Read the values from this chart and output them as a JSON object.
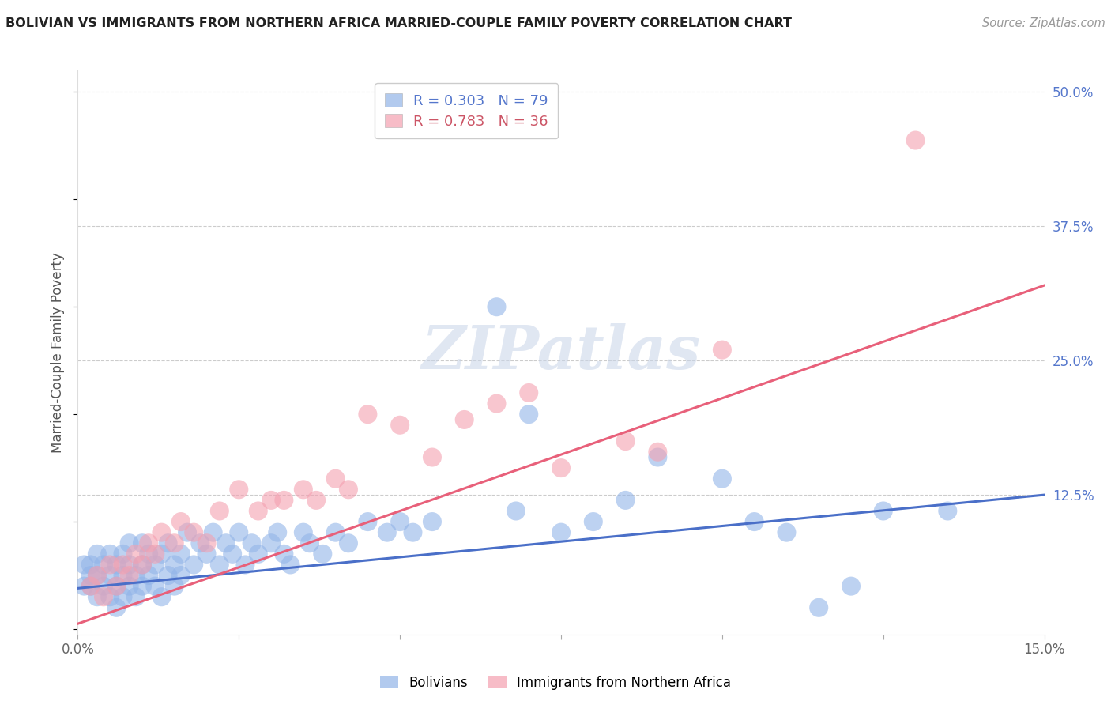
{
  "title": "BOLIVIAN VS IMMIGRANTS FROM NORTHERN AFRICA MARRIED-COUPLE FAMILY POVERTY CORRELATION CHART",
  "source": "Source: ZipAtlas.com",
  "ylabel": "Married-Couple Family Poverty",
  "ytick_labels": [
    "12.5%",
    "25.0%",
    "37.5%",
    "50.0%"
  ],
  "ytick_values": [
    0.125,
    0.25,
    0.375,
    0.5
  ],
  "xtick_positions": [
    0.0,
    0.025,
    0.05,
    0.075,
    0.1,
    0.125,
    0.15
  ],
  "xtick_labels": [
    "0.0%",
    "",
    "",
    "",
    "",
    "",
    "15.0%"
  ],
  "xlim": [
    0.0,
    0.15
  ],
  "ylim": [
    -0.005,
    0.52
  ],
  "blue_R": 0.303,
  "blue_N": 79,
  "pink_R": 0.783,
  "pink_N": 36,
  "blue_color": "#92b4e8",
  "pink_color": "#f4a0b0",
  "blue_line_color": "#4a6fc8",
  "pink_line_color": "#e8607a",
  "legend_label_blue": "Bolivians",
  "legend_label_pink": "Immigrants from Northern Africa",
  "watermark": "ZIPatlas",
  "blue_line_x": [
    0.0,
    0.15
  ],
  "blue_line_y": [
    0.038,
    0.125
  ],
  "pink_line_x": [
    0.0,
    0.15
  ],
  "pink_line_y": [
    0.005,
    0.32
  ],
  "blue_scatter_x": [
    0.001,
    0.001,
    0.002,
    0.002,
    0.002,
    0.003,
    0.003,
    0.003,
    0.004,
    0.004,
    0.005,
    0.005,
    0.005,
    0.006,
    0.006,
    0.006,
    0.007,
    0.007,
    0.007,
    0.008,
    0.008,
    0.008,
    0.009,
    0.009,
    0.01,
    0.01,
    0.01,
    0.011,
    0.011,
    0.012,
    0.012,
    0.013,
    0.013,
    0.014,
    0.014,
    0.015,
    0.015,
    0.016,
    0.016,
    0.017,
    0.018,
    0.019,
    0.02,
    0.021,
    0.022,
    0.023,
    0.024,
    0.025,
    0.026,
    0.027,
    0.028,
    0.03,
    0.031,
    0.032,
    0.033,
    0.035,
    0.036,
    0.038,
    0.04,
    0.042,
    0.045,
    0.048,
    0.05,
    0.052,
    0.055,
    0.065,
    0.068,
    0.07,
    0.075,
    0.08,
    0.085,
    0.09,
    0.1,
    0.105,
    0.11,
    0.115,
    0.12,
    0.125,
    0.135
  ],
  "blue_scatter_y": [
    0.04,
    0.06,
    0.05,
    0.04,
    0.06,
    0.03,
    0.05,
    0.07,
    0.04,
    0.06,
    0.03,
    0.05,
    0.07,
    0.02,
    0.04,
    0.06,
    0.03,
    0.05,
    0.07,
    0.04,
    0.06,
    0.08,
    0.03,
    0.05,
    0.04,
    0.06,
    0.08,
    0.05,
    0.07,
    0.04,
    0.06,
    0.03,
    0.07,
    0.05,
    0.08,
    0.04,
    0.06,
    0.05,
    0.07,
    0.09,
    0.06,
    0.08,
    0.07,
    0.09,
    0.06,
    0.08,
    0.07,
    0.09,
    0.06,
    0.08,
    0.07,
    0.08,
    0.09,
    0.07,
    0.06,
    0.09,
    0.08,
    0.07,
    0.09,
    0.08,
    0.1,
    0.09,
    0.1,
    0.09,
    0.1,
    0.3,
    0.11,
    0.2,
    0.09,
    0.1,
    0.12,
    0.16,
    0.14,
    0.1,
    0.09,
    0.02,
    0.04,
    0.11,
    0.11
  ],
  "pink_scatter_x": [
    0.002,
    0.003,
    0.004,
    0.005,
    0.006,
    0.007,
    0.008,
    0.009,
    0.01,
    0.011,
    0.012,
    0.013,
    0.015,
    0.016,
    0.018,
    0.02,
    0.022,
    0.025,
    0.028,
    0.03,
    0.032,
    0.035,
    0.037,
    0.04,
    0.042,
    0.045,
    0.05,
    0.055,
    0.06,
    0.065,
    0.07,
    0.075,
    0.085,
    0.09,
    0.1,
    0.13
  ],
  "pink_scatter_y": [
    0.04,
    0.05,
    0.03,
    0.06,
    0.04,
    0.06,
    0.05,
    0.07,
    0.06,
    0.08,
    0.07,
    0.09,
    0.08,
    0.1,
    0.09,
    0.08,
    0.11,
    0.13,
    0.11,
    0.12,
    0.12,
    0.13,
    0.12,
    0.14,
    0.13,
    0.2,
    0.19,
    0.16,
    0.195,
    0.21,
    0.22,
    0.15,
    0.175,
    0.165,
    0.26,
    0.455
  ]
}
